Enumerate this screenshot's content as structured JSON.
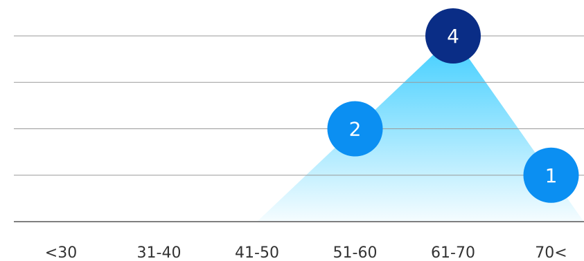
{
  "chart_data": {
    "type": "area",
    "categories": [
      "<30",
      "31-40",
      "41-50",
      "51-60",
      "61-70",
      "70<"
    ],
    "values": [
      null,
      null,
      0,
      2,
      4,
      1
    ],
    "color": "#0b8ff2",
    "highlight_color": "#0a2d86",
    "fill_color": "#3ccdff",
    "ylim": [
      0,
      4
    ],
    "yticks": [
      0,
      1,
      2,
      3,
      4
    ],
    "grid": true
  }
}
